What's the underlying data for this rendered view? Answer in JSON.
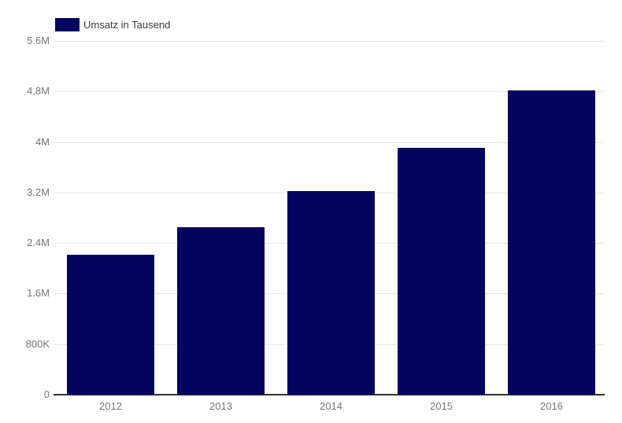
{
  "chart_data": {
    "type": "bar",
    "title": "",
    "series_name": "Umsatz in Tausend",
    "categories": [
      "2012",
      "2013",
      "2014",
      "2015",
      "2016"
    ],
    "values": [
      2220000,
      2650000,
      3220000,
      3910000,
      4820000
    ],
    "xlabel": "",
    "ylabel": "",
    "ylim": [
      0,
      5600000
    ],
    "yticks": [
      {
        "value": 5600000,
        "label": "5.6M"
      },
      {
        "value": 4800000,
        "label": "4.8M"
      },
      {
        "value": 4000000,
        "label": "4M"
      },
      {
        "value": 3200000,
        "label": "3.2M"
      },
      {
        "value": 2400000,
        "label": "2.4M"
      },
      {
        "value": 1600000,
        "label": "1.6M"
      },
      {
        "value": 800000,
        "label": "800K"
      },
      {
        "value": 0,
        "label": "0"
      }
    ],
    "grid": true,
    "legend_position": "top-left",
    "colors": {
      "bar": "#05055f",
      "gridline": "#e6e6e6",
      "baseline": "#333333",
      "tick_label": "#757575",
      "legend_text": "#3c3c3c",
      "background": "#ffffff"
    }
  }
}
